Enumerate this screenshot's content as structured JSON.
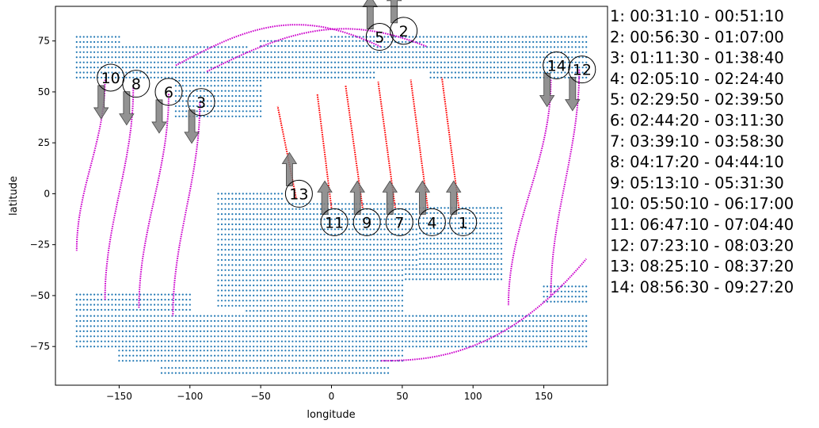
{
  "chart_data": {
    "type": "scatter",
    "xlabel": "longitude",
    "ylabel": "latitude",
    "xlim": [
      -195,
      195
    ],
    "ylim": [
      -94,
      92
    ],
    "xticks": [
      -150,
      -100,
      -50,
      0,
      50,
      100,
      150
    ],
    "yticks": [
      -75,
      -50,
      -25,
      0,
      25,
      50,
      75
    ],
    "grid": false,
    "colors": {
      "land": "#1f77b4",
      "path": "#cc00cc",
      "segment": "#ff0000",
      "arrow": "#7f7f7f"
    },
    "land_regions": [
      {
        "lon": [
          -180,
          -150
        ],
        "lat": [
          57,
          77
        ]
      },
      {
        "lon": [
          -180,
          -60
        ],
        "lat": [
          57,
          73
        ]
      },
      {
        "lon": [
          -110,
          -50
        ],
        "lat": [
          38,
          57
        ]
      },
      {
        "lon": [
          -60,
          30
        ],
        "lat": [
          57,
          70
        ]
      },
      {
        "lon": [
          -50,
          30
        ],
        "lat": [
          60,
          75
        ]
      },
      {
        "lon": [
          0,
          70
        ],
        "lat": [
          62,
          77
        ]
      },
      {
        "lon": [
          70,
          180
        ],
        "lat": [
          57,
          77
        ]
      },
      {
        "lon": [
          -80,
          -35
        ],
        "lat": [
          -55,
          0
        ]
      },
      {
        "lon": [
          -60,
          50
        ],
        "lat": [
          -60,
          -10
        ]
      },
      {
        "lon": [
          -40,
          60
        ],
        "lat": [
          -35,
          -5
        ]
      },
      {
        "lon": [
          -10,
          120
        ],
        "lat": [
          -42,
          -5
        ]
      },
      {
        "lon": [
          -180,
          180
        ],
        "lat": [
          -75,
          -60
        ]
      },
      {
        "lon": [
          -180,
          -100
        ],
        "lat": [
          -62,
          -48
        ]
      },
      {
        "lon": [
          -150,
          50
        ],
        "lat": [
          -82,
          -62
        ]
      },
      {
        "lon": [
          -120,
          40
        ],
        "lat": [
          -88,
          -80
        ]
      },
      {
        "lon": [
          150,
          180
        ],
        "lat": [
          -53,
          -45
        ]
      }
    ],
    "passes": [
      {
        "id": "1",
        "label": "00:31:10 - 00:51:10",
        "direction": "ascending",
        "lon": [
          90,
          78
        ],
        "lat": [
          -7,
          57
        ]
      },
      {
        "id": "2",
        "label": "00:56:30 - 01:07:00",
        "direction": "ascending",
        "lon": [
          53
        ],
        "lat": [
          92
        ]
      },
      {
        "id": "3",
        "label": "01:11:30 - 01:38:40",
        "direction": "descending",
        "lon": [
          -93,
          -112
        ],
        "lat": [
          45,
          -60
        ]
      },
      {
        "id": "4",
        "label": "02:05:10 - 02:24:40",
        "direction": "ascending",
        "lon": [
          68,
          56
        ],
        "lat": [
          -7,
          56
        ]
      },
      {
        "id": "5",
        "label": "02:29:50 - 02:39:50",
        "direction": "ascending",
        "lon": [
          35
        ],
        "lat": [
          86
        ]
      },
      {
        "id": "6",
        "label": "02:44:20 - 03:11:30",
        "direction": "descending",
        "lon": [
          -115,
          -136
        ],
        "lat": [
          49,
          -56
        ]
      },
      {
        "id": "7",
        "label": "03:39:10 - 03:58:30",
        "direction": "ascending",
        "lon": [
          45,
          33
        ],
        "lat": [
          -7,
          55
        ]
      },
      {
        "id": "8",
        "label": "04:17:20 - 04:44:10",
        "direction": "descending",
        "lon": [
          -140,
          -160
        ],
        "lat": [
          52,
          -52
        ]
      },
      {
        "id": "9",
        "label": "05:13:10 - 05:31:30",
        "direction": "ascending",
        "lon": [
          22,
          10
        ],
        "lat": [
          -7,
          53
        ]
      },
      {
        "id": "10",
        "label": "05:50:10 - 06:17:00",
        "direction": "descending",
        "lon": [
          -160,
          -180
        ],
        "lat": [
          56,
          -28
        ]
      },
      {
        "id": "11",
        "label": "06:47:10 - 07:04:40",
        "direction": "ascending",
        "lon": [
          0,
          -10
        ],
        "lat": [
          -7,
          49
        ]
      },
      {
        "id": "12",
        "label": "07:23:10 - 08:03:20",
        "direction": "descending",
        "lon": [
          175,
          155
        ],
        "lat": [
          61,
          -50
        ]
      },
      {
        "id": "13",
        "label": "08:25:10 - 08:37:20",
        "direction": "ascending",
        "lon": [
          -25,
          -38
        ],
        "lat": [
          -2,
          43
        ]
      },
      {
        "id": "14",
        "label": "08:56:30 - 09:27:20",
        "direction": "descending",
        "lon": [
          155,
          125
        ],
        "lat": [
          56,
          -55
        ]
      }
    ],
    "annotations": [
      {
        "text": "1",
        "lon": 93,
        "lat": -14,
        "arrow": "up"
      },
      {
        "text": "2",
        "lon": 51,
        "lat": 80,
        "arrow": "up"
      },
      {
        "text": "3",
        "lon": -92,
        "lat": 45,
        "arrow": "down"
      },
      {
        "text": "4",
        "lon": 71,
        "lat": -14,
        "arrow": "up"
      },
      {
        "text": "5",
        "lon": 34,
        "lat": 77,
        "arrow": "up"
      },
      {
        "text": "6",
        "lon": -115,
        "lat": 50,
        "arrow": "down"
      },
      {
        "text": "7",
        "lon": 48,
        "lat": -14,
        "arrow": "up"
      },
      {
        "text": "8",
        "lon": -138,
        "lat": 54,
        "arrow": "down"
      },
      {
        "text": "9",
        "lon": 25,
        "lat": -14,
        "arrow": "up"
      },
      {
        "text": "10",
        "lon": -156,
        "lat": 57,
        "arrow": "down"
      },
      {
        "text": "11",
        "lon": 2,
        "lat": -14,
        "arrow": "up"
      },
      {
        "text": "12",
        "lon": 177,
        "lat": 61,
        "arrow": "down"
      },
      {
        "text": "13",
        "lon": -23,
        "lat": 0,
        "arrow": "up"
      },
      {
        "text": "14",
        "lon": 159,
        "lat": 63,
        "arrow": "down"
      }
    ]
  }
}
